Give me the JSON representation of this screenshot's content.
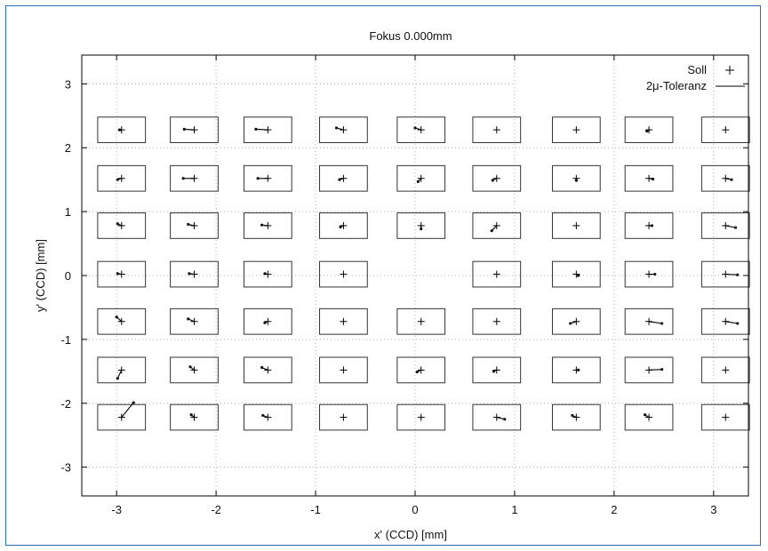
{
  "chart_data": {
    "type": "scatter",
    "title": "Fokus  0.000mm",
    "xlabel": "x' (CCD) [mm]",
    "ylabel": "y' (CCD) [mm]",
    "xlim": [
      -3.35,
      3.35
    ],
    "ylim": [
      -3.45,
      3.45
    ],
    "xticks": [
      -3,
      -2,
      -1,
      0,
      1,
      2,
      3
    ],
    "yticks": [
      -3,
      -2,
      -1,
      0,
      1,
      2,
      3
    ],
    "tick_labels_x": [
      "-3",
      "-2",
      "-1",
      "0",
      "1",
      "2",
      "3"
    ],
    "tick_labels_y": [
      "-3",
      "-2",
      "-1",
      "0",
      "1",
      "2",
      "3"
    ],
    "grid": true,
    "legend_position": "top-right",
    "legend": [
      {
        "name": "Soll",
        "marker": "+"
      },
      {
        "name": "2μ-Toleranz",
        "marker": "line"
      }
    ],
    "grid_x": [
      -2.95,
      -2.22,
      -1.48,
      -0.72,
      0.06,
      0.82,
      1.62,
      2.35,
      3.12
    ],
    "grid_y": [
      2.28,
      1.52,
      0.78,
      0.02,
      -0.72,
      -1.48,
      -2.22
    ],
    "soll_points": [
      [
        -2.95,
        2.28
      ],
      [
        -2.22,
        2.28
      ],
      [
        -1.48,
        2.28
      ],
      [
        -0.72,
        2.28
      ],
      [
        0.06,
        2.28
      ],
      [
        0.82,
        2.28
      ],
      [
        1.62,
        2.28
      ],
      [
        2.35,
        2.28
      ],
      [
        3.12,
        2.28
      ],
      [
        -2.95,
        1.52
      ],
      [
        -2.22,
        1.52
      ],
      [
        -1.48,
        1.52
      ],
      [
        -0.72,
        1.52
      ],
      [
        0.06,
        1.52
      ],
      [
        0.82,
        1.52
      ],
      [
        1.62,
        1.52
      ],
      [
        2.35,
        1.52
      ],
      [
        3.12,
        1.52
      ],
      [
        -2.95,
        0.78
      ],
      [
        -2.22,
        0.78
      ],
      [
        -1.48,
        0.78
      ],
      [
        -0.72,
        0.78
      ],
      [
        0.06,
        0.78
      ],
      [
        0.82,
        0.78
      ],
      [
        1.62,
        0.78
      ],
      [
        2.35,
        0.78
      ],
      [
        3.12,
        0.78
      ],
      [
        -2.95,
        0.02
      ],
      [
        -2.22,
        0.02
      ],
      [
        -1.48,
        0.02
      ],
      [
        -0.72,
        0.02
      ],
      [
        0.82,
        0.02
      ],
      [
        1.62,
        0.02
      ],
      [
        2.35,
        0.02
      ],
      [
        3.12,
        0.02
      ],
      [
        -2.95,
        -0.72
      ],
      [
        -2.22,
        -0.72
      ],
      [
        -1.48,
        -0.72
      ],
      [
        -0.72,
        -0.72
      ],
      [
        0.06,
        -0.72
      ],
      [
        0.82,
        -0.72
      ],
      [
        1.62,
        -0.72
      ],
      [
        2.35,
        -0.72
      ],
      [
        3.12,
        -0.72
      ],
      [
        -2.95,
        -1.48
      ],
      [
        -2.22,
        -1.48
      ],
      [
        -1.48,
        -1.48
      ],
      [
        -0.72,
        -1.48
      ],
      [
        0.06,
        -1.48
      ],
      [
        0.82,
        -1.48
      ],
      [
        1.62,
        -1.48
      ],
      [
        2.35,
        -1.48
      ],
      [
        3.12,
        -1.48
      ],
      [
        -2.95,
        -2.22
      ],
      [
        -2.22,
        -2.22
      ],
      [
        -1.48,
        -2.22
      ],
      [
        -0.72,
        -2.22
      ],
      [
        0.06,
        -2.22
      ],
      [
        0.82,
        -2.22
      ],
      [
        1.62,
        -2.22
      ],
      [
        2.35,
        -2.22
      ],
      [
        3.12,
        -2.22
      ]
    ],
    "tolerance_box": {
      "half_width": 0.24,
      "half_height": 0.2
    },
    "deviation_vectors": [
      [
        -0.02,
        0.0
      ],
      [
        -0.1,
        0.01
      ],
      [
        -0.12,
        0.01
      ],
      [
        -0.07,
        0.03
      ],
      [
        -0.06,
        0.03
      ],
      [
        0.0,
        0.0
      ],
      [
        0.0,
        0.0
      ],
      [
        -0.02,
        -0.02
      ],
      [
        0.0,
        0.0
      ],
      [
        -0.04,
        -0.02
      ],
      [
        -0.11,
        0.0
      ],
      [
        -0.1,
        0.0
      ],
      [
        -0.04,
        -0.02
      ],
      [
        -0.03,
        -0.05
      ],
      [
        -0.04,
        -0.03
      ],
      [
        0.0,
        -0.03
      ],
      [
        0.04,
        -0.01
      ],
      [
        0.06,
        -0.02
      ],
      [
        -0.04,
        0.03
      ],
      [
        -0.06,
        0.02
      ],
      [
        -0.06,
        0.01
      ],
      [
        -0.03,
        -0.02
      ],
      [
        0.0,
        -0.05
      ],
      [
        -0.05,
        -0.08
      ],
      [
        0.0,
        0.0
      ],
      [
        0.03,
        0.0
      ],
      [
        0.1,
        -0.03
      ],
      [
        -0.04,
        0.01
      ],
      [
        -0.05,
        0.01
      ],
      [
        -0.03,
        0.01
      ],
      [
        0.0,
        0.0
      ],
      [
        0.0,
        0.0
      ],
      [
        0.02,
        -0.02
      ],
      [
        0.06,
        0.0
      ],
      [
        0.12,
        -0.01
      ],
      [
        -0.05,
        0.07
      ],
      [
        -0.06,
        0.04
      ],
      [
        -0.03,
        -0.02
      ],
      [
        0.0,
        0.0
      ],
      [
        0.0,
        0.0
      ],
      [
        0.0,
        0.0
      ],
      [
        -0.06,
        -0.03
      ],
      [
        0.13,
        -0.03
      ],
      [
        0.12,
        -0.03
      ],
      [
        -0.04,
        -0.13
      ],
      [
        -0.04,
        0.05
      ],
      [
        -0.06,
        0.04
      ],
      [
        0.0,
        0.0
      ],
      [
        -0.04,
        -0.03
      ],
      [
        -0.03,
        -0.02
      ],
      [
        0.02,
        0.0
      ],
      [
        0.13,
        0.01
      ],
      [
        0.0,
        0.0
      ],
      [
        0.12,
        0.23
      ],
      [
        -0.03,
        0.04
      ],
      [
        -0.05,
        0.03
      ],
      [
        0.0,
        0.0
      ],
      [
        0.0,
        0.0
      ],
      [
        0.08,
        -0.03
      ],
      [
        -0.04,
        0.03
      ],
      [
        -0.04,
        0.04
      ],
      [
        0.0,
        0.0
      ]
    ]
  }
}
